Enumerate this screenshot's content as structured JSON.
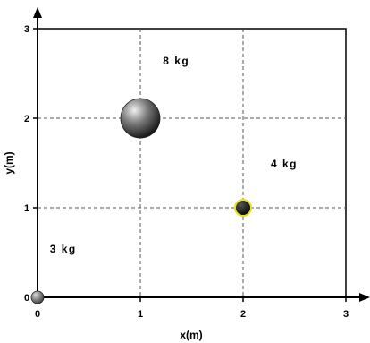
{
  "chart_data": {
    "type": "scatter",
    "xlabel": "x(m)",
    "ylabel": "y(m)",
    "xlim": [
      0,
      3
    ],
    "ylim": [
      0,
      3
    ],
    "x_ticks": [
      "0",
      "1",
      "2",
      "3"
    ],
    "y_ticks": [
      "0",
      "1",
      "2",
      "3"
    ],
    "grid": true,
    "points": [
      {
        "x": 0,
        "y": 0,
        "mass": 3,
        "label": "3 kg",
        "label_pos": [
          0.25,
          0.5
        ],
        "size": "small",
        "color": "#6b6b6b"
      },
      {
        "x": 1,
        "y": 2,
        "mass": 8,
        "label": "8 kg",
        "label_pos": [
          1.35,
          2.6
        ],
        "size": "large",
        "color": "#4a4a4a"
      },
      {
        "x": 2,
        "y": 1,
        "mass": 4,
        "label": "4 kg",
        "label_pos": [
          2.4,
          1.45
        ],
        "size": "medium",
        "color": "#1a1a1a",
        "ring": "#e8e020"
      }
    ]
  }
}
